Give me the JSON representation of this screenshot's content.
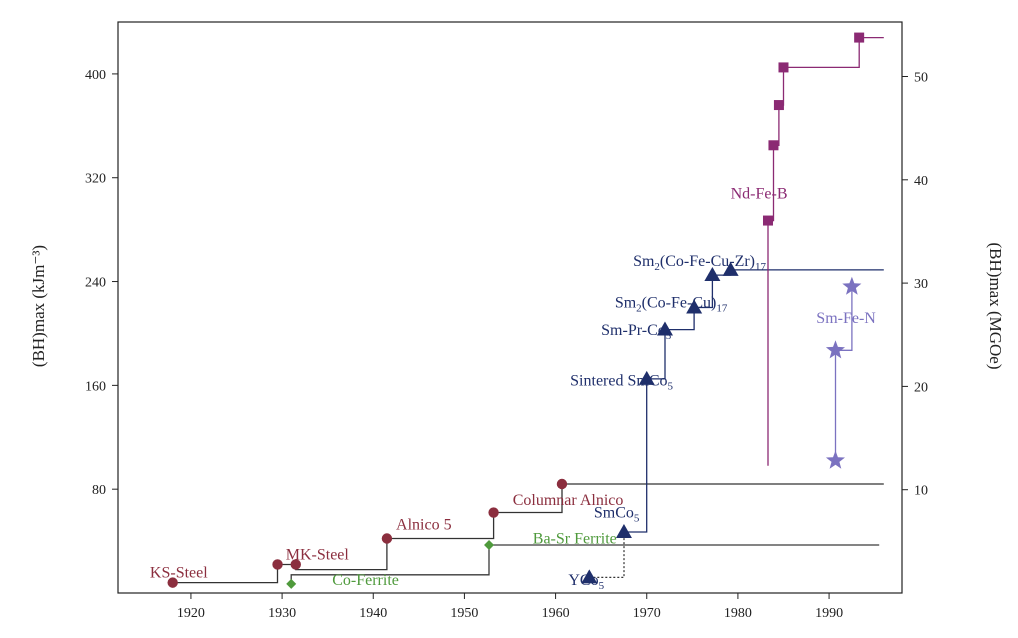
{
  "chart_data": {
    "type": "line",
    "xlabel": "",
    "ylabel_left": "(BH)max (kJm⁻³)",
    "ylabel_right": "(BH)max (MGOe)",
    "xlim": [
      1912,
      1998
    ],
    "ylim": [
      0,
      440
    ],
    "x_ticks": [
      1920,
      1930,
      1940,
      1950,
      1960,
      1970,
      1980,
      1990
    ],
    "y_ticks_left": [
      80,
      160,
      240,
      320,
      400
    ],
    "y_ticks_right": [
      10,
      20,
      30,
      40,
      50
    ],
    "grid": false,
    "colors": {
      "steel": "#8b2e3e",
      "ferrite": "#4f9a3c",
      "smco": "#1f2f6b",
      "ndfeb": "#8b2a73",
      "smfen": "#7b72c0",
      "line": "#333333"
    },
    "series": [
      {
        "group": "steel-alnico",
        "color_key": "steel",
        "marker": "circle",
        "points": [
          [
            1918,
            8
          ],
          [
            1929.5,
            22
          ],
          [
            1931.5,
            22
          ],
          [
            1941.5,
            42
          ],
          [
            1953.2,
            62
          ],
          [
            1960.7,
            84
          ]
        ],
        "path": [
          [
            1918,
            8
          ],
          [
            1929.5,
            8
          ],
          [
            1929.5,
            22
          ],
          [
            1931.5,
            22
          ],
          [
            1931.5,
            18
          ],
          [
            1941.5,
            18
          ],
          [
            1941.5,
            42
          ],
          [
            1953.2,
            42
          ],
          [
            1953.2,
            62
          ],
          [
            1960.7,
            62
          ],
          [
            1960.7,
            84
          ],
          [
            1996,
            84
          ]
        ]
      },
      {
        "group": "ferrite",
        "color_key": "ferrite",
        "marker": "diamond",
        "points": [
          [
            1931,
            7
          ],
          [
            1952.7,
            37
          ]
        ],
        "path": [
          [
            1931,
            7
          ],
          [
            1931,
            14
          ],
          [
            1952.7,
            14
          ],
          [
            1952.7,
            37
          ],
          [
            1995.5,
            37
          ]
        ]
      },
      {
        "group": "smco",
        "color_key": "smco",
        "marker": "triangle",
        "points": [
          [
            1963.7,
            12
          ],
          [
            1967.5,
            47
          ],
          [
            1970,
            165
          ],
          [
            1972,
            203
          ],
          [
            1975.2,
            220
          ],
          [
            1977.2,
            245
          ],
          [
            1979.2,
            249
          ]
        ],
        "path": [
          [
            1967.5,
            47
          ],
          [
            1970,
            47
          ],
          [
            1970,
            165
          ],
          [
            1972,
            165
          ],
          [
            1972,
            203
          ],
          [
            1975.2,
            203
          ],
          [
            1975.2,
            220
          ],
          [
            1977.2,
            220
          ],
          [
            1977.2,
            245
          ],
          [
            1979.2,
            245
          ],
          [
            1979.2,
            249
          ],
          [
            1996,
            249
          ]
        ],
        "dotted": [
          [
            1963.7,
            12
          ],
          [
            1967.5,
            12
          ],
          [
            1967.5,
            47
          ]
        ]
      },
      {
        "group": "ndfeb",
        "color_key": "ndfeb",
        "marker": "square",
        "points": [
          [
            1983.3,
            287
          ],
          [
            1983.9,
            345
          ],
          [
            1984.5,
            376
          ],
          [
            1985,
            405
          ],
          [
            1993.3,
            428
          ]
        ],
        "path": [
          [
            1983.3,
            98
          ],
          [
            1983.3,
            287
          ],
          [
            1983.9,
            287
          ],
          [
            1983.9,
            345
          ],
          [
            1984.5,
            345
          ],
          [
            1984.5,
            376
          ],
          [
            1985,
            376
          ],
          [
            1985,
            405
          ],
          [
            1993.3,
            405
          ],
          [
            1993.3,
            428
          ],
          [
            1996,
            428
          ]
        ]
      },
      {
        "group": "smfen",
        "color_key": "smfen",
        "marker": "star",
        "points": [
          [
            1990.7,
            102
          ],
          [
            1990.7,
            187
          ],
          [
            1992.5,
            236
          ]
        ],
        "path": [
          [
            1990.7,
            102
          ],
          [
            1990.7,
            187
          ],
          [
            1992.5,
            187
          ],
          [
            1992.5,
            236
          ]
        ]
      }
    ],
    "labels": [
      {
        "text": "KS-Steel",
        "x": 1915.5,
        "y": 12,
        "color_key": "steel"
      },
      {
        "text": "MK-Steel",
        "x": 1930.4,
        "y": 26,
        "color_key": "steel"
      },
      {
        "text": "Co-Ferrite",
        "x": 1935.5,
        "y": 6,
        "color_key": "ferrite"
      },
      {
        "text": "Alnico 5",
        "x": 1942.5,
        "y": 49,
        "color_key": "steel"
      },
      {
        "text": "Ba-Sr Ferrite",
        "x": 1957.5,
        "y": 38,
        "color_key": "ferrite"
      },
      {
        "text": "Columnar Alnico",
        "x": 1955.3,
        "y": 68,
        "color_key": "steel"
      },
      {
        "text": "SmCo",
        "sub": "5",
        "x": 1964.2,
        "y": 58,
        "color_key": "smco"
      },
      {
        "text": "YCo",
        "sub": "5",
        "x": 1961.4,
        "y": 6,
        "color_key": "smco"
      },
      {
        "text": "Sintered SmCo",
        "sub": "5",
        "x": 1961.6,
        "y": 160,
        "color_key": "smco"
      },
      {
        "text": "Sm-Pr-Co",
        "sub": "5",
        "x": 1965,
        "y": 199,
        "color_key": "smco"
      },
      {
        "text": "Sm",
        "sub": "2",
        "mid": "(Co-Fe-Cu)",
        "sub2": "17",
        "x": 1966.5,
        "y": 220,
        "color_key": "smco"
      },
      {
        "text": "Sm",
        "sub": "2",
        "mid": "(Co-Fe-Cu-Zr)",
        "sub2": "17",
        "x": 1968.5,
        "y": 252,
        "color_key": "smco"
      },
      {
        "text": "Nd-Fe-B",
        "x": 1979.2,
        "y": 304,
        "color_key": "ndfeb"
      },
      {
        "text": "Sm-Fe-N",
        "x": 1988.6,
        "y": 208,
        "color_key": "smfen"
      }
    ]
  }
}
